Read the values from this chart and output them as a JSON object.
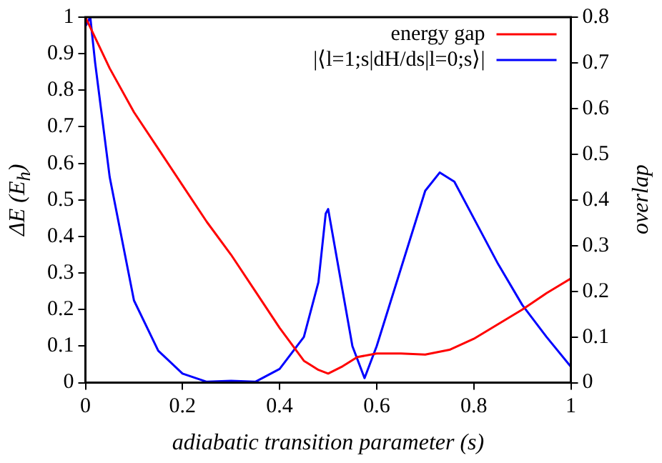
{
  "chart_data": {
    "type": "line",
    "xlabel": "adiabatic transition parameter (s)",
    "ylabel": "ΔE (E$_{h}$)",
    "y2label": "overlap",
    "xlim": [
      0,
      1
    ],
    "xticks": [
      0,
      0.2,
      0.4,
      0.6,
      0.8,
      1
    ],
    "ylim": [
      0,
      1
    ],
    "yticks": [
      0,
      0.1,
      0.2,
      0.3,
      0.4,
      0.5,
      0.6,
      0.7,
      0.8,
      0.9,
      1
    ],
    "y2lim": [
      0,
      0.8
    ],
    "y2ticks": [
      0,
      0.1,
      0.2,
      0.3,
      0.4,
      0.5,
      0.6,
      0.7,
      0.8
    ],
    "grid": false,
    "legend": "top right",
    "marker": "none",
    "line_style": "solid",
    "series": [
      {
        "name": "energy gap",
        "color": "#ff0000",
        "x": [
          0,
          0.05,
          0.1,
          0.15,
          0.2,
          0.25,
          0.3,
          0.35,
          0.4,
          0.45,
          0.48,
          0.5,
          0.53,
          0.56,
          0.6,
          0.65,
          0.7,
          0.75,
          0.8,
          0.85,
          0.9,
          0.95,
          1
        ],
        "values": [
          1,
          0.86,
          0.74,
          0.64,
          0.54,
          0.44,
          0.35,
          0.25,
          0.15,
          0.06,
          0.035,
          0.025,
          0.045,
          0.07,
          0.08,
          0.08,
          0.077,
          0.09,
          0.12,
          0.16,
          0.2,
          0.245,
          0.285
        ]
      },
      {
        "name": "|⟨l=1;s|dH/ds|l=0;s⟩|",
        "color": "#0000ff",
        "axis": "y2",
        "x": [
          0,
          0.01,
          0.02,
          0.05,
          0.1,
          0.15,
          0.2,
          0.25,
          0.3,
          0.35,
          0.4,
          0.45,
          0.48,
          0.495,
          0.5,
          0.505,
          0.53,
          0.55,
          0.575,
          0.6,
          0.65,
          0.7,
          0.73,
          0.76,
          0.8,
          0.85,
          0.9,
          0.95,
          1
        ],
        "values": [
          0.78,
          0.8,
          0.7,
          0.45,
          0.18,
          0.07,
          0.02,
          0.002,
          0.004,
          0.002,
          0.03,
          0.1,
          0.22,
          0.37,
          0.38,
          0.35,
          0.2,
          0.08,
          0.01,
          0.08,
          0.25,
          0.42,
          0.46,
          0.44,
          0.36,
          0.26,
          0.17,
          0.1,
          0.035
        ]
      }
    ]
  }
}
